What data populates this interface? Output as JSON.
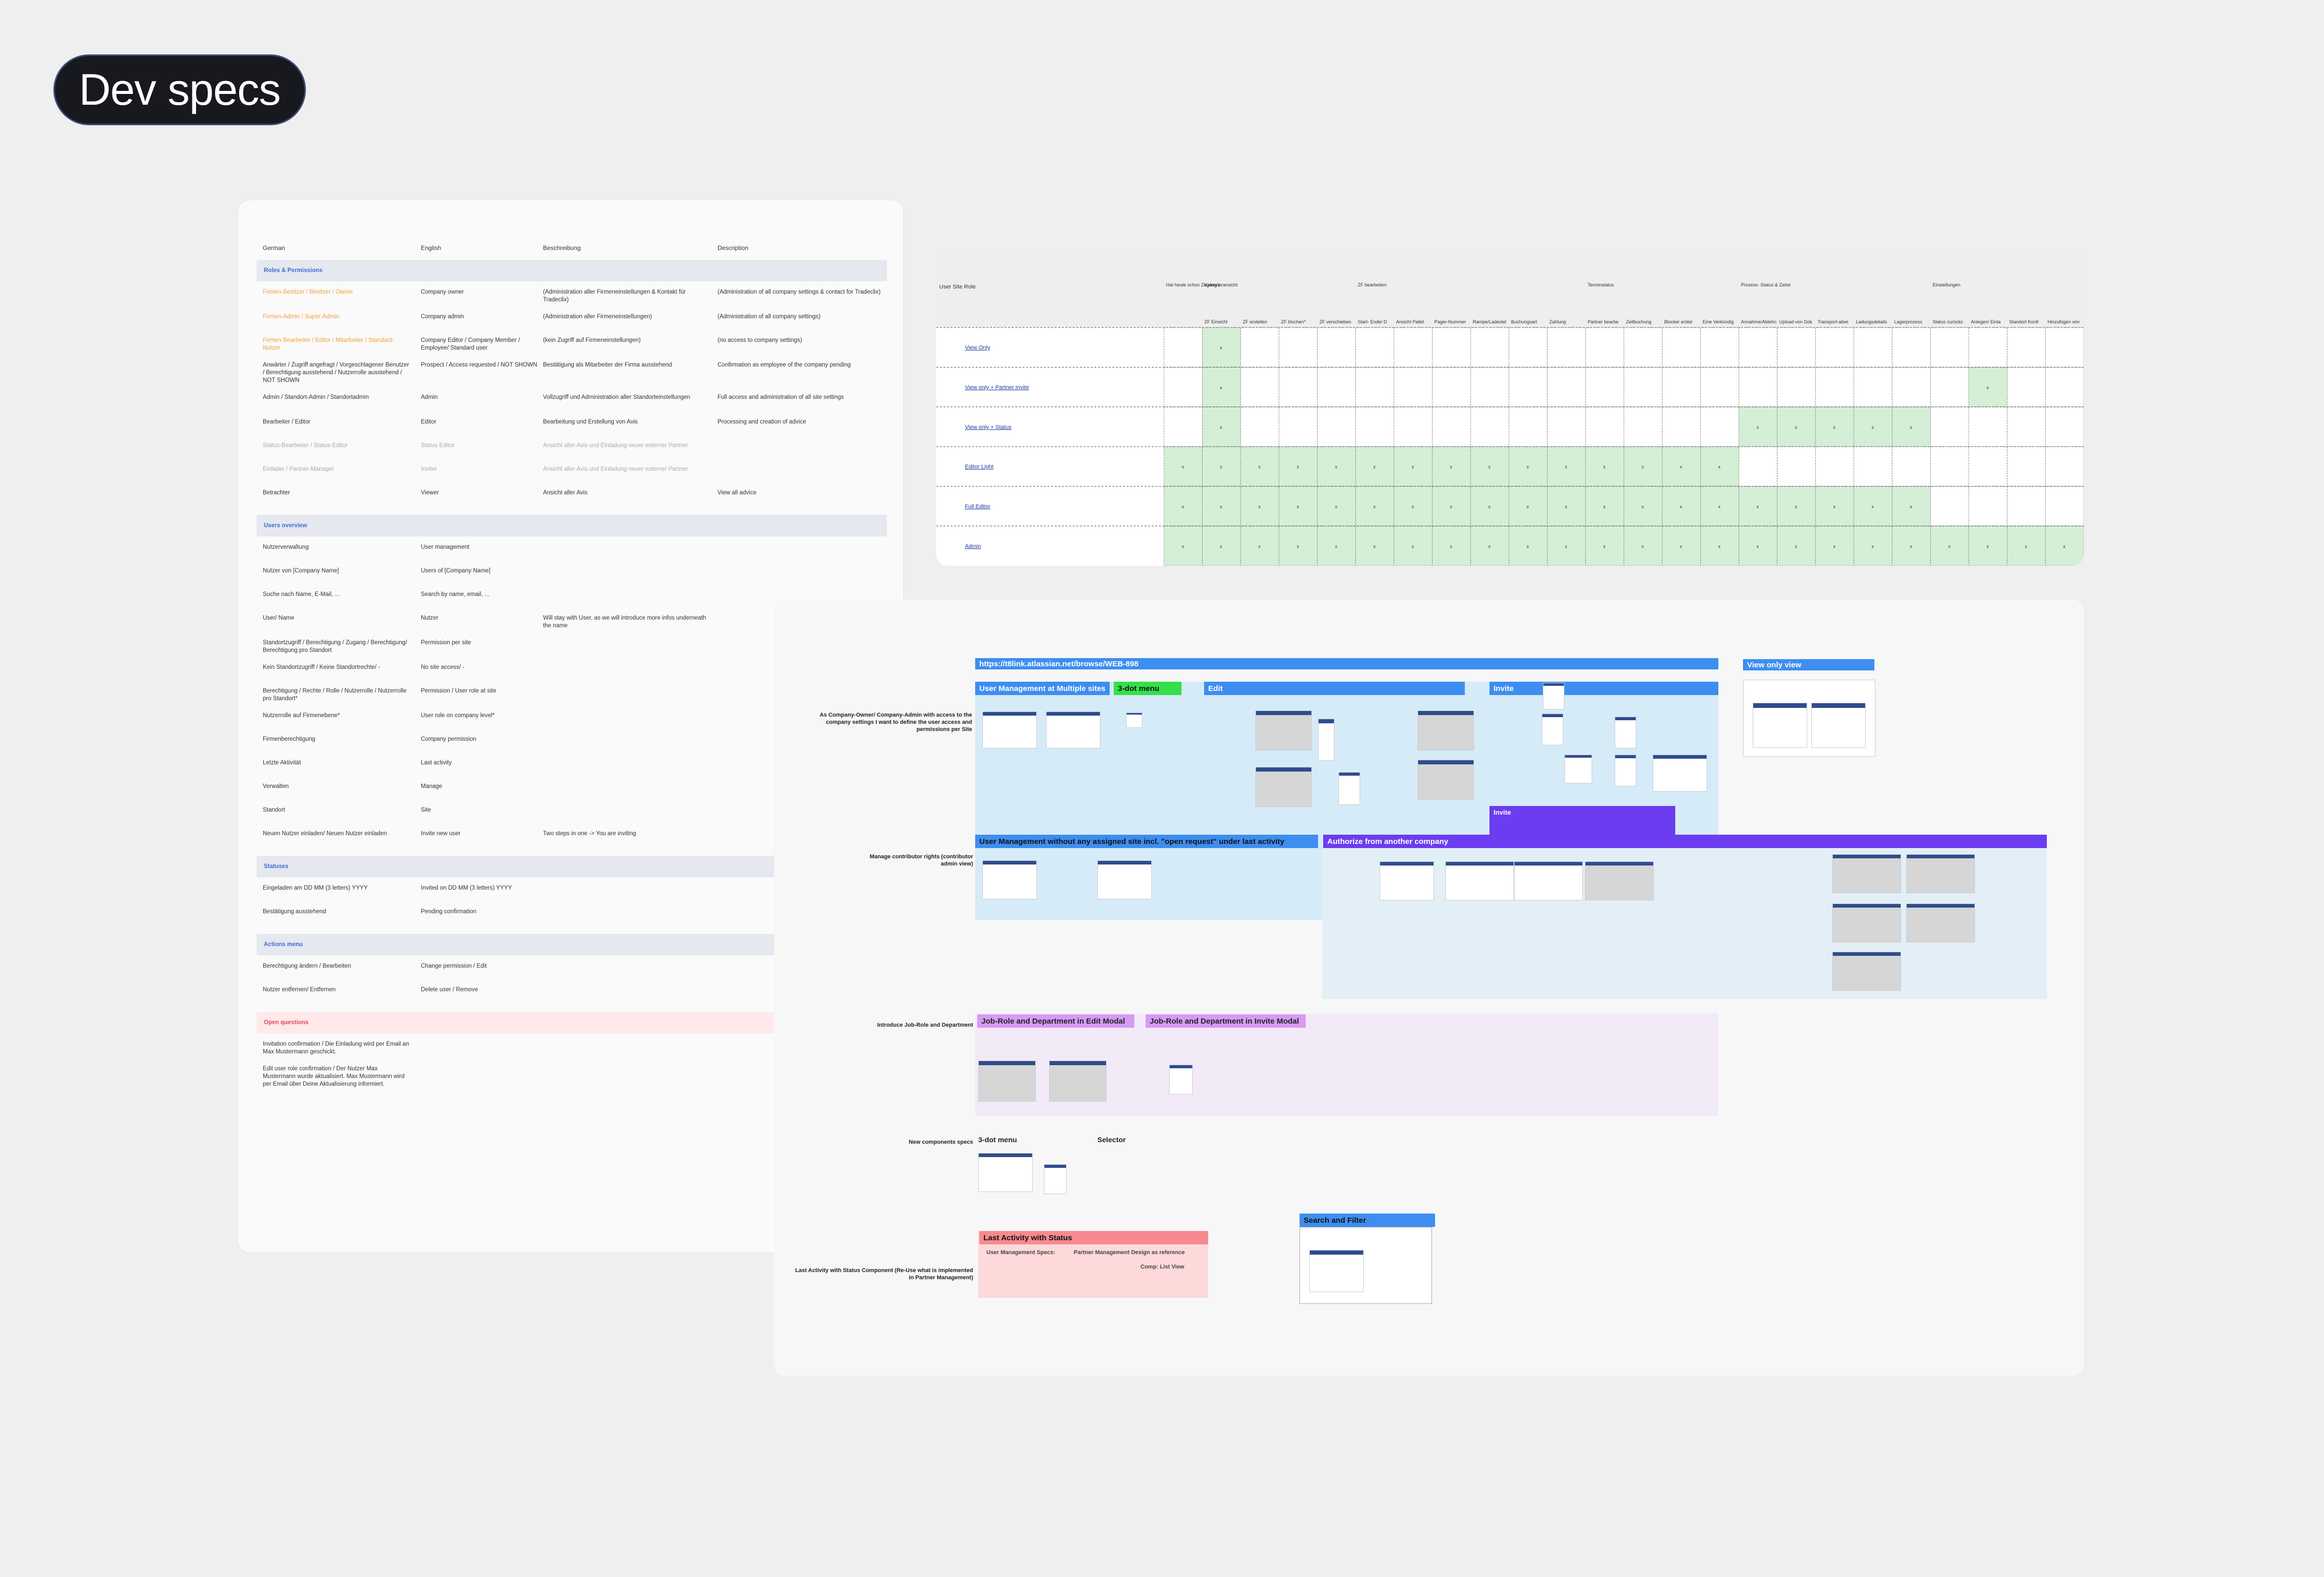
{
  "title": "Dev specs",
  "dictionary": {
    "columns": [
      "German",
      "English",
      "Beschreibung",
      "Description"
    ],
    "sections": [
      {
        "heading": "Roles & Permissions",
        "rows": [
          {
            "de": "Firmen-Besitzer / Besitzer / Owner",
            "en": "Company owner",
            "beschr": "(Administration aller Firmeneinstellungen & Kontakt für Tradeclix)",
            "desc": "(Administration of all company settings & contact for Tradeclix)"
          },
          {
            "de": "Firmen-Admin / Super-Admin",
            "en": "Company admin",
            "beschr": "(Administration aller Firmeneinstellungen)",
            "desc": "(Administration of all company settings)"
          },
          {
            "de": "Firmen-Bearbeiter / Editor / Mitarbeiter / Standard-Nutzer",
            "en": "Company Editor / Company Member / Employee/ Standard user",
            "beschr": "(kein Zugriff auf Firmeneinstellungen)",
            "desc": "(no access to company settings)"
          },
          {
            "de": "Anwärter / Zugriff angefragt / Vorgeschlagener Benutzer / Berechtigung ausstehend / Nutzerrolle ausstehend / NOT SHOWN",
            "en": "Prospect / Access requested / NOT SHOWN",
            "beschr": "Bestätigung als Mitarbeiter der Firma ausstehend",
            "desc": "Confirmation as employee of the company pending"
          },
          {
            "de": "Admin / Standort-Admin / Standortadmin",
            "en": "Admin",
            "beschr": "Vollzugriff und Administration aller Standorteinstellungen",
            "desc": "Full access and administration of all site settings"
          },
          {
            "de": "Bearbeiter / Editor",
            "en": "Editor",
            "beschr": "Bearbeitung und Erstellung von Avis",
            "desc": "Processing and creation of advice"
          },
          {
            "de": "Status-Bearbeiter / Status-Editor",
            "en": "Status Editor",
            "beschr": "Ansicht aller Avis und Einladung neuer externer Partner",
            "desc": ""
          },
          {
            "de": "Einlader / Partner-Manager",
            "en": "Inviter",
            "beschr": "Ansicht aller Avis und Einladung neuer externer Partner",
            "desc": ""
          },
          {
            "de": "Betrachter",
            "en": "Viewer",
            "beschr": "Ansicht aller Avis",
            "desc": "View all advice"
          }
        ]
      },
      {
        "heading": "Users overview",
        "rows": [
          {
            "de": "Nutzerverwaltung",
            "en": "User management",
            "beschr": "",
            "desc": ""
          },
          {
            "de": "Nutzer von [Company Name]",
            "en": "Users of [Company Name]",
            "beschr": "",
            "desc": ""
          },
          {
            "de": "Suche nach Name, E-Mail, ...",
            "en": "Search by name, email, ...",
            "beschr": "",
            "desc": ""
          },
          {
            "de": "User/ Name",
            "en": "Nutzer",
            "beschr": "Will stay with User, as we will introduce more infos underneath the name",
            "desc": ""
          },
          {
            "de": "Standortzugriff / Berechtigung / Zugang / Berechtigung/ Berechtigung pro Standort",
            "en": "Permission per site",
            "beschr": "",
            "desc": ""
          },
          {
            "de": "Kein Standortzugriff / Keine Standortrechte/ -",
            "en": "No site access/ -",
            "beschr": "",
            "desc": ""
          },
          {
            "de": "Berechtigung / Rechte / Rolle / Nutzerrolle / Nutzerrolle pro Standort*",
            "en": "Permission / User role at site",
            "beschr": "",
            "desc": ""
          },
          {
            "de": "Nutzerrolle auf Firmenebene*",
            "en": "User role on company level*",
            "beschr": "",
            "desc": ""
          },
          {
            "de": "Firmenberechtigung",
            "en": "Company permission",
            "beschr": "",
            "desc": ""
          },
          {
            "de": "Letzte Aktivität",
            "en": "Last activity",
            "beschr": "",
            "desc": ""
          },
          {
            "de": "Verwalten",
            "en": "Manage",
            "beschr": "",
            "desc": ""
          },
          {
            "de": "Standort",
            "en": "Site",
            "beschr": "",
            "desc": ""
          },
          {
            "de": "Neuen Nutzer einladen/ Neuen Nutzer einladen",
            "en": "Invite new user",
            "beschr": "Two steps in one -> You are inviting",
            "desc": ""
          }
        ]
      },
      {
        "heading": "Statuses",
        "rows": [
          {
            "de": "Eingeladen am DD MM (3 letters) YYYY",
            "en": "Invited on DD MM (3 letters) YYYY",
            "beschr": "",
            "desc": ""
          },
          {
            "de": "Bestätigung ausstehend",
            "en": "Pending confirmation",
            "beschr": "",
            "desc": ""
          }
        ]
      },
      {
        "heading": "Actions menu",
        "rows": [
          {
            "de": "Berechtigung ändern / Bearbeiten",
            "en": "Change permission / Edit",
            "beschr": "",
            "desc": ""
          },
          {
            "de": "Nutzer entfernen/ Entfernen",
            "en": "Delete user / Remove",
            "beschr": "",
            "desc": ""
          }
        ]
      },
      {
        "heading": "Open questions",
        "rows": [
          {
            "de": "Invitation confirmation / Die Einladung wird per Email an Max Mustermann geschickt.",
            "en": "",
            "beschr": "",
            "desc": ""
          },
          {
            "de": "Edit user role confirmation / Der Nutzer Max Mustermann wurde aktualisiert. Max Mustermann wird per Email über Deine Aktualisierung informiert.",
            "en": "",
            "beschr": "",
            "desc": ""
          }
        ]
      }
    ]
  },
  "matrix": {
    "corner_label": "User Site Role",
    "group_headers": [
      "Hat heute schon Zugang zu Tradeclix",
      "Kalenderansicht",
      "ZF bearbeiten",
      "Terminstatus",
      "Prozess- Status & Zeitstempel",
      "Einstellungen"
    ],
    "columns": [
      "ZF Einsicht",
      "ZF erstellen",
      "ZF löschen*",
      "ZF verschieben (im Kalender)",
      "Start- Ende/ Dauer",
      "Ansicht Palletten",
      "Pager-Nummer",
      "Rampe/Ladestelle",
      "Buchungsart",
      "Zahlung",
      "Partner bearbeiten",
      "Zeitbuchung",
      "Blocker erstellen",
      "Eine Verkündigung",
      "Annahme/Ablehnung",
      "Upload von Dokumenten",
      "Transport-abwicklung",
      "Ladungsdetails",
      "Lagerprozess",
      "Status zurücksetzen",
      "Anlegen/ Einladen eines neuen Partners",
      "Standort Konfiguration",
      "Hinzufügen von Anlegen/ Internen Nutzern"
    ],
    "rows": [
      {
        "label": "View Only",
        "cells": [
          0,
          1,
          0,
          0,
          0,
          0,
          0,
          0,
          0,
          0,
          0,
          0,
          0,
          0,
          0,
          0,
          0,
          0,
          0,
          0,
          0,
          0,
          0,
          0
        ]
      },
      {
        "label": "View only + Partner Invite",
        "cells": [
          0,
          1,
          0,
          0,
          0,
          0,
          0,
          0,
          0,
          0,
          0,
          0,
          0,
          0,
          0,
          0,
          0,
          0,
          0,
          0,
          0,
          1,
          0,
          0
        ]
      },
      {
        "label": "View only + Status",
        "cells": [
          0,
          1,
          0,
          0,
          0,
          0,
          0,
          0,
          0,
          0,
          0,
          0,
          0,
          0,
          0,
          1,
          1,
          1,
          1,
          1,
          0,
          0,
          0,
          0
        ]
      },
      {
        "label": "Editor Light",
        "cells": [
          1,
          1,
          1,
          1,
          1,
          1,
          1,
          1,
          1,
          1,
          1,
          1,
          1,
          1,
          1,
          0,
          0,
          0,
          0,
          0,
          0,
          0,
          0,
          0
        ]
      },
      {
        "label": "Full Editor",
        "cells": [
          1,
          1,
          1,
          1,
          1,
          1,
          1,
          1,
          1,
          1,
          1,
          1,
          1,
          1,
          1,
          1,
          1,
          1,
          1,
          1,
          0,
          0,
          0,
          0
        ]
      },
      {
        "label": "Admin",
        "cells": [
          1,
          1,
          1,
          1,
          1,
          1,
          1,
          1,
          1,
          1,
          1,
          1,
          1,
          1,
          1,
          1,
          1,
          1,
          1,
          1,
          1,
          1,
          1,
          1
        ]
      }
    ],
    "check_mark": "x",
    "green": "#d4efd6"
  },
  "board": {
    "link_bar": "https://t8link.atlassian.net/browse/WEB-898",
    "view_only_bar": "View only view",
    "sections": [
      {
        "label": "As Company-Owner/ Company-Admin with access to the company settings I want to define the user access and permissions per Site",
        "bars": [
          "User Management at Multiple sites",
          "3-dot menu",
          "Edit",
          "Invite",
          "Invite"
        ]
      },
      {
        "label": "Manage contributor rights (contributor admin view)",
        "bars": [
          "User Management without any assigned site incl. \"open request\" under last activity",
          "Authorize from another company"
        ]
      },
      {
        "label": "Introduce Job-Role and Department",
        "bars": [
          "Job-Role and Department in Edit Modal",
          "Job-Role and Department in Invite Modal"
        ]
      },
      {
        "label": "New components specs",
        "bars": [
          "3-dot menu",
          "Selector"
        ]
      },
      {
        "label": "Last Activity with Status Component (Re-Use what is implemented in Partner Management)",
        "bars": [
          "Last Activity with Status",
          "Search and Filter"
        ]
      }
    ],
    "last_activity_notes": [
      "User Management Specs:",
      "Partner Management Design as reference",
      "Comp: List View"
    ],
    "colors": {
      "blue": "#3d8ef0",
      "green": "#33e04a",
      "purple": "#6b3cf0",
      "violet": "#d79af5",
      "pink": "#f78a8f",
      "lightblue": "#d6ebf8",
      "lightpurple": "#f3eaf8",
      "lightpink": "#fdd9da"
    }
  }
}
